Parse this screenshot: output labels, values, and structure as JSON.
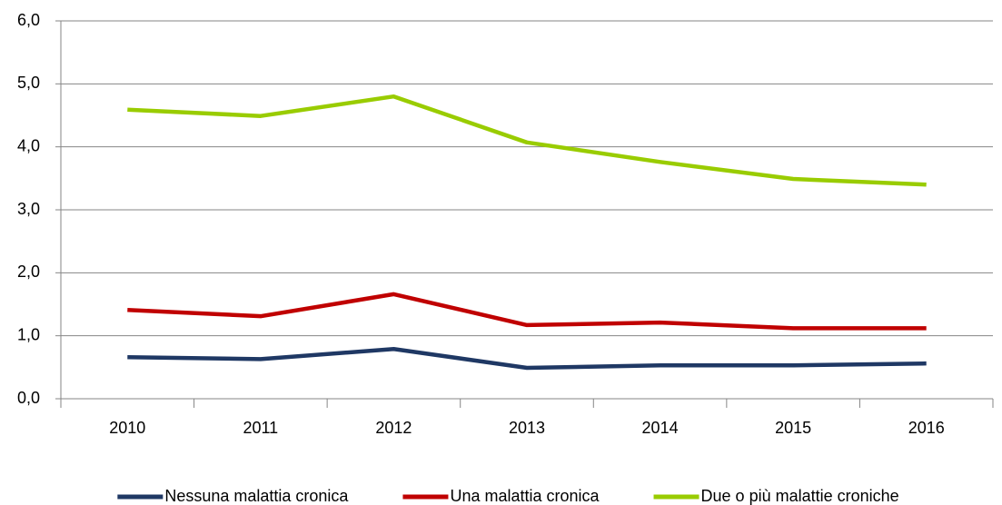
{
  "chart_data": {
    "type": "line",
    "categories": [
      "2010",
      "2011",
      "2012",
      "2013",
      "2014",
      "2015",
      "2016"
    ],
    "series": [
      {
        "name": "Nessuna malattia cronica",
        "color": "#1f3864",
        "values": [
          0.66,
          0.63,
          0.79,
          0.49,
          0.53,
          0.53,
          0.56
        ]
      },
      {
        "name": "Una malattia cronica",
        "color": "#c00000",
        "values": [
          1.41,
          1.31,
          1.66,
          1.17,
          1.21,
          1.12,
          1.12
        ]
      },
      {
        "name": "Due o più malattie croniche",
        "color": "#99cc00",
        "values": [
          4.59,
          4.49,
          4.8,
          4.07,
          3.76,
          3.49,
          3.4
        ]
      }
    ],
    "ylim": [
      0,
      6
    ],
    "yticks": [
      {
        "value": 0,
        "label": "0,0"
      },
      {
        "value": 1,
        "label": "1,0"
      },
      {
        "value": 2,
        "label": "2,0"
      },
      {
        "value": 3,
        "label": "3,0"
      },
      {
        "value": 4,
        "label": "4,0"
      },
      {
        "value": 5,
        "label": "5,0"
      },
      {
        "value": 6,
        "label": "6,0"
      }
    ],
    "grid": true,
    "legend": "bottom"
  }
}
